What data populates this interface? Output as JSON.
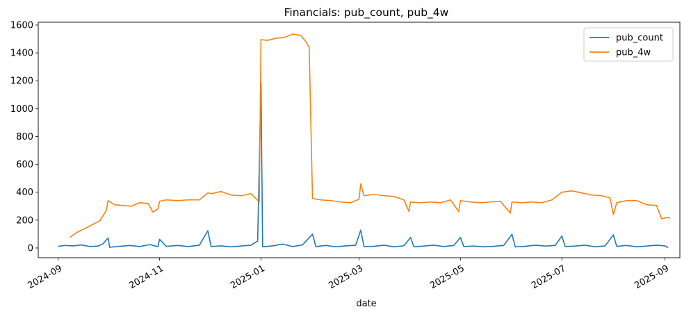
{
  "chart_data": {
    "type": "line",
    "title": "Financials: pub_count, pub_4w",
    "xlabel": "date",
    "ylabel": "",
    "xlim": [
      "2024-08-20",
      "2025-09-10"
    ],
    "ylim": [
      -70,
      1620
    ],
    "x_ticks": [
      "2024-09",
      "2024-11",
      "2025-01",
      "2025-03",
      "2025-05",
      "2025-07",
      "2025-09"
    ],
    "y_ticks": [
      0,
      200,
      400,
      600,
      800,
      1000,
      1200,
      1400,
      1600
    ],
    "legend": {
      "position": "top-right"
    },
    "grid": false,
    "series": [
      {
        "name": "pub_count",
        "color": "#1f77b4",
        "points": [
          [
            "2024-09-01",
            12
          ],
          [
            "2024-09-05",
            18
          ],
          [
            "2024-09-10",
            15
          ],
          [
            "2024-09-15",
            22
          ],
          [
            "2024-09-20",
            10
          ],
          [
            "2024-09-25",
            14
          ],
          [
            "2024-09-28",
            30
          ],
          [
            "2024-10-01",
            72
          ],
          [
            "2024-10-02",
            5
          ],
          [
            "2024-10-08",
            12
          ],
          [
            "2024-10-14",
            18
          ],
          [
            "2024-10-20",
            10
          ],
          [
            "2024-10-26",
            24
          ],
          [
            "2024-10-31",
            10
          ],
          [
            "2024-11-01",
            62
          ],
          [
            "2024-11-05",
            12
          ],
          [
            "2024-11-12",
            18
          ],
          [
            "2024-11-18",
            10
          ],
          [
            "2024-11-25",
            20
          ],
          [
            "2024-11-30",
            124
          ],
          [
            "2024-12-02",
            10
          ],
          [
            "2024-12-08",
            15
          ],
          [
            "2024-12-14",
            8
          ],
          [
            "2024-12-20",
            14
          ],
          [
            "2024-12-26",
            20
          ],
          [
            "2024-12-30",
            50
          ],
          [
            "2025-01-01",
            1185
          ],
          [
            "2025-01-02",
            8
          ],
          [
            "2025-01-08",
            15
          ],
          [
            "2025-01-14",
            28
          ],
          [
            "2025-01-20",
            10
          ],
          [
            "2025-01-26",
            22
          ],
          [
            "2025-02-01",
            100
          ],
          [
            "2025-02-03",
            10
          ],
          [
            "2025-02-09",
            18
          ],
          [
            "2025-02-15",
            8
          ],
          [
            "2025-02-21",
            15
          ],
          [
            "2025-02-27",
            20
          ],
          [
            "2025-03-02",
            128
          ],
          [
            "2025-03-04",
            10
          ],
          [
            "2025-03-10",
            12
          ],
          [
            "2025-03-16",
            20
          ],
          [
            "2025-03-22",
            8
          ],
          [
            "2025-03-28",
            16
          ],
          [
            "2025-04-01",
            76
          ],
          [
            "2025-04-03",
            8
          ],
          [
            "2025-04-09",
            14
          ],
          [
            "2025-04-15",
            20
          ],
          [
            "2025-04-21",
            10
          ],
          [
            "2025-04-27",
            18
          ],
          [
            "2025-05-01",
            76
          ],
          [
            "2025-05-03",
            10
          ],
          [
            "2025-05-09",
            14
          ],
          [
            "2025-05-15",
            8
          ],
          [
            "2025-05-21",
            12
          ],
          [
            "2025-05-27",
            18
          ],
          [
            "2025-06-01",
            98
          ],
          [
            "2025-06-03",
            8
          ],
          [
            "2025-06-09",
            12
          ],
          [
            "2025-06-15",
            20
          ],
          [
            "2025-06-21",
            14
          ],
          [
            "2025-06-27",
            18
          ],
          [
            "2025-07-01",
            86
          ],
          [
            "2025-07-03",
            10
          ],
          [
            "2025-07-09",
            14
          ],
          [
            "2025-07-15",
            20
          ],
          [
            "2025-07-21",
            8
          ],
          [
            "2025-07-27",
            15
          ],
          [
            "2025-08-01",
            94
          ],
          [
            "2025-08-03",
            12
          ],
          [
            "2025-08-09",
            18
          ],
          [
            "2025-08-15",
            8
          ],
          [
            "2025-08-21",
            14
          ],
          [
            "2025-08-27",
            20
          ],
          [
            "2025-09-01",
            15
          ],
          [
            "2025-09-03",
            2
          ]
        ]
      },
      {
        "name": "pub_4w",
        "color": "#ff7f0e",
        "points": [
          [
            "2024-09-08",
            75
          ],
          [
            "2024-09-12",
            110
          ],
          [
            "2024-09-18",
            145
          ],
          [
            "2024-09-22",
            170
          ],
          [
            "2024-09-26",
            195
          ],
          [
            "2024-09-30",
            270
          ],
          [
            "2024-10-01",
            340
          ],
          [
            "2024-10-05",
            310
          ],
          [
            "2024-10-10",
            305
          ],
          [
            "2024-10-15",
            300
          ],
          [
            "2024-10-20",
            325
          ],
          [
            "2024-10-25",
            320
          ],
          [
            "2024-10-28",
            258
          ],
          [
            "2024-10-31",
            280
          ],
          [
            "2024-11-01",
            335
          ],
          [
            "2024-11-05",
            345
          ],
          [
            "2024-11-12",
            340
          ],
          [
            "2024-11-18",
            345
          ],
          [
            "2024-11-25",
            345
          ],
          [
            "2024-11-30",
            395
          ],
          [
            "2024-12-02",
            390
          ],
          [
            "2024-12-08",
            405
          ],
          [
            "2024-12-14",
            380
          ],
          [
            "2024-12-20",
            375
          ],
          [
            "2024-12-26",
            390
          ],
          [
            "2024-12-31",
            330
          ],
          [
            "2025-01-01",
            1495
          ],
          [
            "2025-01-05",
            1490
          ],
          [
            "2025-01-10",
            1505
          ],
          [
            "2025-01-15",
            1510
          ],
          [
            "2025-01-20",
            1535
          ],
          [
            "2025-01-25",
            1525
          ],
          [
            "2025-01-28",
            1480
          ],
          [
            "2025-01-30",
            1440
          ],
          [
            "2025-02-01",
            355
          ],
          [
            "2025-02-06",
            345
          ],
          [
            "2025-02-12",
            340
          ],
          [
            "2025-02-18",
            330
          ],
          [
            "2025-02-24",
            325
          ],
          [
            "2025-03-01",
            350
          ],
          [
            "2025-03-02",
            460
          ],
          [
            "2025-03-04",
            375
          ],
          [
            "2025-03-10",
            385
          ],
          [
            "2025-03-16",
            375
          ],
          [
            "2025-03-22",
            370
          ],
          [
            "2025-03-28",
            345
          ],
          [
            "2025-03-31",
            262
          ],
          [
            "2025-04-01",
            330
          ],
          [
            "2025-04-07",
            325
          ],
          [
            "2025-04-13",
            330
          ],
          [
            "2025-04-19",
            325
          ],
          [
            "2025-04-25",
            345
          ],
          [
            "2025-04-30",
            260
          ],
          [
            "2025-05-01",
            340
          ],
          [
            "2025-05-07",
            330
          ],
          [
            "2025-05-13",
            325
          ],
          [
            "2025-05-19",
            330
          ],
          [
            "2025-05-25",
            335
          ],
          [
            "2025-05-31",
            250
          ],
          [
            "2025-06-01",
            330
          ],
          [
            "2025-06-07",
            325
          ],
          [
            "2025-06-13",
            330
          ],
          [
            "2025-06-19",
            325
          ],
          [
            "2025-06-25",
            345
          ],
          [
            "2025-07-01",
            400
          ],
          [
            "2025-07-07",
            410
          ],
          [
            "2025-07-13",
            395
          ],
          [
            "2025-07-19",
            380
          ],
          [
            "2025-07-25",
            375
          ],
          [
            "2025-07-30",
            360
          ],
          [
            "2025-08-01",
            238
          ],
          [
            "2025-08-03",
            325
          ],
          [
            "2025-08-09",
            340
          ],
          [
            "2025-08-15",
            340
          ],
          [
            "2025-08-21",
            310
          ],
          [
            "2025-08-27",
            305
          ],
          [
            "2025-08-30",
            210
          ],
          [
            "2025-09-03",
            220
          ],
          [
            "2025-09-04",
            212
          ]
        ]
      }
    ]
  }
}
